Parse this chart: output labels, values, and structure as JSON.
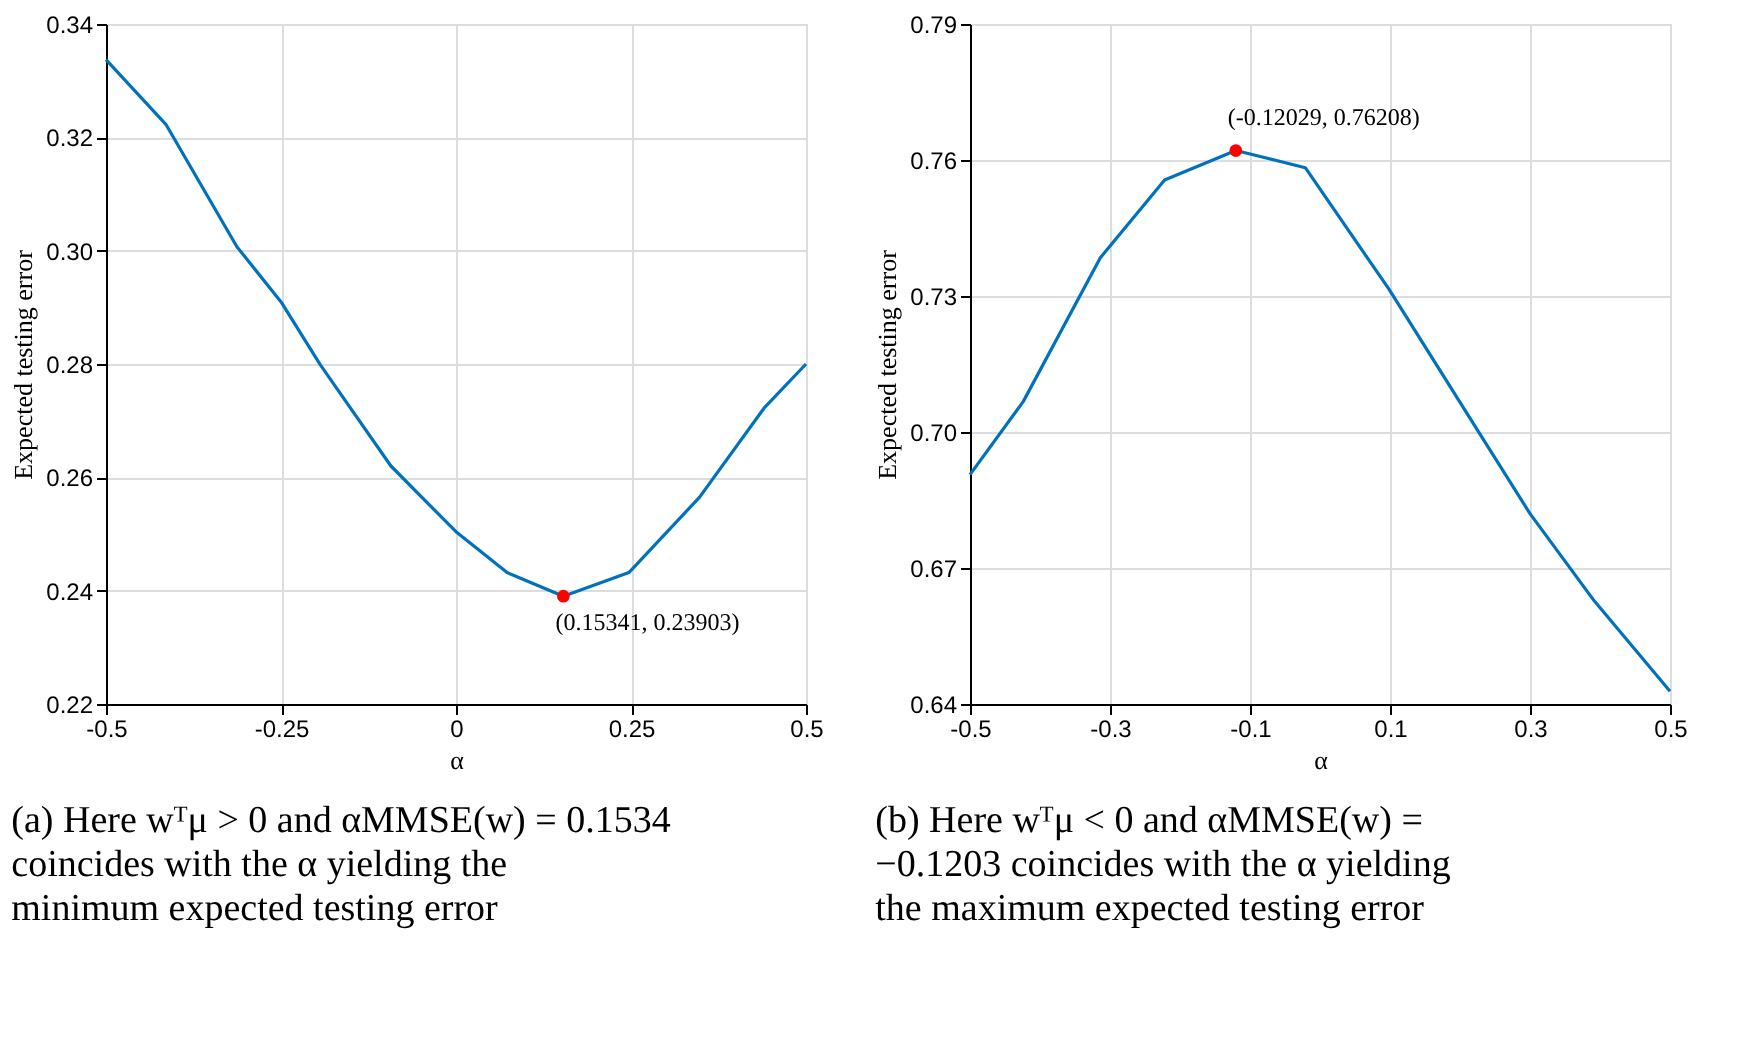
{
  "chart_data": [
    {
      "type": "line",
      "xlabel": "α",
      "ylabel": "Expected testing error",
      "title": "(a) Here wᵀμ > 0 and αMMSE(w) = 0.1534 coincides with the α yielding the minimum expected testing error",
      "xlim": [
        -0.5,
        0.5
      ],
      "ylim": [
        0.22,
        0.34
      ],
      "xticks": [
        {
          "value": -0.5,
          "label": "-0.5"
        },
        {
          "value": -0.25,
          "label": "-0.25"
        },
        {
          "value": 0,
          "label": "0"
        },
        {
          "value": 0.25,
          "label": "0.25"
        },
        {
          "value": 0.5,
          "label": "0.5"
        }
      ],
      "yticks": [
        {
          "value": 0.22,
          "label": "0.22"
        },
        {
          "value": 0.24,
          "label": "0.24"
        },
        {
          "value": 0.26,
          "label": "0.26"
        },
        {
          "value": 0.28,
          "label": "0.28"
        },
        {
          "value": 0.3,
          "label": "0.30"
        },
        {
          "value": 0.32,
          "label": "0.32"
        },
        {
          "value": 0.34,
          "label": "0.34"
        }
      ],
      "grid": true,
      "series": [
        {
          "color": "#0072bd",
          "x": [
            -0.5,
            -0.4145,
            -0.313,
            -0.249,
            -0.194,
            -0.093,
            0.0,
            0.073,
            0.1534,
            0.247,
            0.348,
            0.44,
            0.5
          ],
          "values": [
            0.3337,
            0.3223,
            0.3007,
            0.2908,
            0.2799,
            0.262,
            0.2504,
            0.2432,
            0.239,
            0.2432,
            0.2565,
            0.2722,
            0.28
          ]
        },
        {
          "type": "scatter",
          "marker": "circle",
          "color": "#ff0000",
          "x": [
            0.15341
          ],
          "values": [
            0.23903
          ]
        }
      ],
      "annotations": [
        {
          "text": "(0.15341, 0.23903)",
          "x": 0.15341,
          "y": 0.23903
        }
      ]
    },
    {
      "type": "line",
      "xlabel": "α",
      "ylabel": "Expected testing error",
      "title": "(b) Here wᵀμ < 0 and αMMSE(w) = −0.1203 coincides with the α yielding the maximum expected testing error",
      "xlim": [
        -0.5,
        0.5
      ],
      "ylim": [
        0.64,
        0.79
      ],
      "xticks": [
        {
          "value": -0.5,
          "label": "-0.5"
        },
        {
          "value": -0.3,
          "label": "-0.3"
        },
        {
          "value": -0.1,
          "label": "-0.1"
        },
        {
          "value": 0.1,
          "label": "0.1"
        },
        {
          "value": 0.3,
          "label": "0.3"
        },
        {
          "value": 0.5,
          "label": "0.5"
        }
      ],
      "yticks": [
        {
          "value": 0.64,
          "label": "0.64"
        },
        {
          "value": 0.67,
          "label": "0.67"
        },
        {
          "value": 0.7,
          "label": "0.70"
        },
        {
          "value": 0.73,
          "label": "0.73"
        },
        {
          "value": 0.76,
          "label": "0.76"
        },
        {
          "value": 0.79,
          "label": "0.79"
        }
      ],
      "grid": true,
      "series": [
        {
          "color": "#0072bd",
          "x": [
            -0.5,
            -0.424,
            -0.314,
            -0.222,
            -0.1203,
            -0.021,
            0.0985,
            0.227,
            0.3,
            0.392,
            0.5
          ],
          "values": [
            0.6906,
            0.7067,
            0.7384,
            0.7556,
            0.7621,
            0.7583,
            0.7315,
            0.6999,
            0.682,
            0.6627,
            0.6428
          ]
        },
        {
          "type": "scatter",
          "marker": "circle",
          "color": "#ff0000",
          "x": [
            -0.12029
          ],
          "values": [
            0.76208
          ]
        }
      ],
      "annotations": [
        {
          "text": "(-0.12029, 0.76208)",
          "x": -0.12029,
          "y": 0.76208
        }
      ]
    }
  ]
}
